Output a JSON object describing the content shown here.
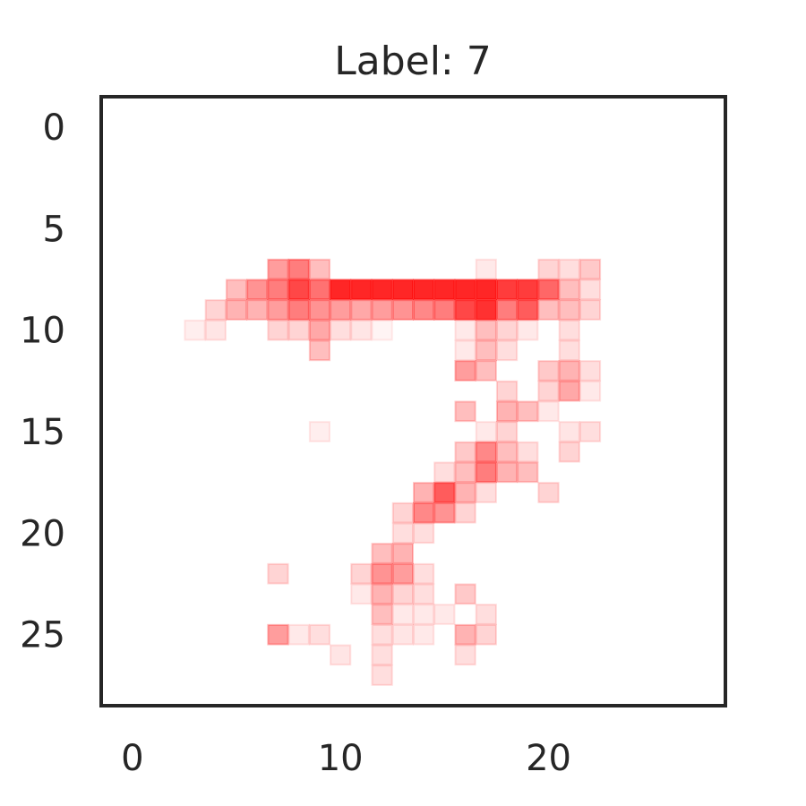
{
  "chart_data": {
    "type": "heatmap",
    "title": "Label: 7",
    "xlabel": "",
    "ylabel": "",
    "grid": false,
    "colormap": "alpha-red",
    "cell_color": "#ff0000",
    "frame_color": "#262626",
    "xlim": [
      -1.5,
      28.5
    ],
    "ylim": [
      28.5,
      -1.5
    ],
    "xticks": [
      0,
      10,
      20
    ],
    "yticks": [
      0,
      5,
      10,
      15,
      20,
      25
    ],
    "value_range": [
      0,
      1
    ],
    "cells": [
      [
        7,
        7,
        0.45
      ],
      [
        8,
        7,
        0.6
      ],
      [
        9,
        7,
        0.3
      ],
      [
        17,
        7,
        0.1
      ],
      [
        20,
        7,
        0.2
      ],
      [
        21,
        7,
        0.15
      ],
      [
        22,
        7,
        0.25
      ],
      [
        5,
        8,
        0.3
      ],
      [
        6,
        8,
        0.5
      ],
      [
        7,
        8,
        0.6
      ],
      [
        8,
        8,
        0.85
      ],
      [
        9,
        8,
        0.65
      ],
      [
        10,
        8,
        1
      ],
      [
        11,
        8,
        1
      ],
      [
        12,
        8,
        1
      ],
      [
        13,
        8,
        1
      ],
      [
        14,
        8,
        1
      ],
      [
        15,
        8,
        1
      ],
      [
        16,
        8,
        1
      ],
      [
        17,
        8,
        1
      ],
      [
        18,
        8,
        0.9
      ],
      [
        19,
        8,
        0.9
      ],
      [
        20,
        8,
        0.7
      ],
      [
        21,
        8,
        0.3
      ],
      [
        22,
        8,
        0.15
      ],
      [
        4,
        9,
        0.2
      ],
      [
        5,
        9,
        0.35
      ],
      [
        6,
        9,
        0.35
      ],
      [
        7,
        9,
        0.45
      ],
      [
        8,
        9,
        0.6
      ],
      [
        9,
        9,
        0.5
      ],
      [
        10,
        9,
        0.45
      ],
      [
        11,
        9,
        0.4
      ],
      [
        12,
        9,
        0.45
      ],
      [
        13,
        9,
        0.5
      ],
      [
        14,
        9,
        0.55
      ],
      [
        15,
        9,
        0.6
      ],
      [
        16,
        9,
        0.85
      ],
      [
        17,
        9,
        0.95
      ],
      [
        18,
        9,
        0.6
      ],
      [
        19,
        9,
        0.75
      ],
      [
        20,
        9,
        0.3
      ],
      [
        21,
        9,
        0.3
      ],
      [
        22,
        9,
        0.2
      ],
      [
        3,
        10,
        0.08
      ],
      [
        4,
        10,
        0.12
      ],
      [
        7,
        10,
        0.2
      ],
      [
        8,
        10,
        0.2
      ],
      [
        9,
        10,
        0.4
      ],
      [
        10,
        10,
        0.15
      ],
      [
        11,
        10,
        0.12
      ],
      [
        12,
        10,
        0.05
      ],
      [
        16,
        10,
        0.1
      ],
      [
        17,
        10,
        0.3
      ],
      [
        18,
        10,
        0.2
      ],
      [
        19,
        10,
        0.1
      ],
      [
        21,
        10,
        0.15
      ],
      [
        9,
        11,
        0.3
      ],
      [
        16,
        11,
        0.1
      ],
      [
        17,
        11,
        0.3
      ],
      [
        18,
        11,
        0.15
      ],
      [
        21,
        11,
        0.15
      ],
      [
        16,
        12,
        0.45
      ],
      [
        17,
        12,
        0.3
      ],
      [
        20,
        12,
        0.25
      ],
      [
        21,
        12,
        0.35
      ],
      [
        22,
        12,
        0.15
      ],
      [
        18,
        13,
        0.2
      ],
      [
        20,
        13,
        0.2
      ],
      [
        21,
        13,
        0.4
      ],
      [
        22,
        13,
        0.1
      ],
      [
        16,
        14,
        0.3
      ],
      [
        18,
        14,
        0.35
      ],
      [
        19,
        14,
        0.3
      ],
      [
        20,
        14,
        0.1
      ],
      [
        9,
        15,
        0.08
      ],
      [
        17,
        15,
        0.1
      ],
      [
        18,
        15,
        0.2
      ],
      [
        21,
        15,
        0.12
      ],
      [
        22,
        15,
        0.15
      ],
      [
        16,
        16,
        0.25
      ],
      [
        17,
        16,
        0.55
      ],
      [
        18,
        16,
        0.3
      ],
      [
        19,
        16,
        0.15
      ],
      [
        21,
        16,
        0.2
      ],
      [
        15,
        17,
        0.15
      ],
      [
        16,
        17,
        0.3
      ],
      [
        17,
        17,
        0.6
      ],
      [
        18,
        17,
        0.35
      ],
      [
        19,
        17,
        0.3
      ],
      [
        14,
        18,
        0.35
      ],
      [
        15,
        18,
        0.75
      ],
      [
        16,
        18,
        0.35
      ],
      [
        17,
        18,
        0.15
      ],
      [
        20,
        18,
        0.2
      ],
      [
        13,
        19,
        0.2
      ],
      [
        14,
        19,
        0.55
      ],
      [
        15,
        19,
        0.5
      ],
      [
        16,
        19,
        0.2
      ],
      [
        13,
        20,
        0.15
      ],
      [
        14,
        20,
        0.15
      ],
      [
        12,
        21,
        0.3
      ],
      [
        13,
        21,
        0.35
      ],
      [
        12,
        22,
        0.5
      ],
      [
        13,
        22,
        0.45
      ],
      [
        11,
        22,
        0.2
      ],
      [
        14,
        22,
        0.15
      ],
      [
        7,
        22,
        0.2
      ],
      [
        11,
        23,
        0.1
      ],
      [
        12,
        23,
        0.35
      ],
      [
        13,
        23,
        0.2
      ],
      [
        14,
        23,
        0.15
      ],
      [
        16,
        23,
        0.25
      ],
      [
        12,
        24,
        0.3
      ],
      [
        13,
        24,
        0.1
      ],
      [
        14,
        24,
        0.1
      ],
      [
        15,
        24,
        0.1
      ],
      [
        17,
        24,
        0.15
      ],
      [
        7,
        25,
        0.45
      ],
      [
        8,
        25,
        0.1
      ],
      [
        9,
        25,
        0.15
      ],
      [
        12,
        25,
        0.15
      ],
      [
        13,
        25,
        0.12
      ],
      [
        14,
        25,
        0.1
      ],
      [
        16,
        25,
        0.35
      ],
      [
        17,
        25,
        0.2
      ],
      [
        10,
        26,
        0.12
      ],
      [
        12,
        26,
        0.15
      ],
      [
        16,
        26,
        0.15
      ],
      [
        12,
        27,
        0.15
      ]
    ]
  }
}
